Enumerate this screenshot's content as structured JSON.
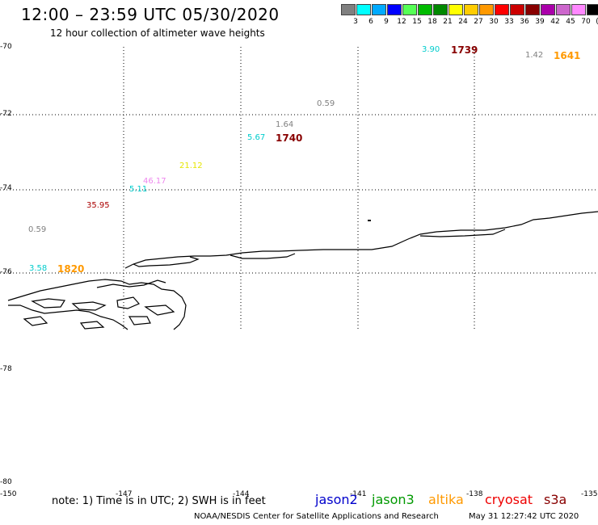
{
  "title": "12:00 – 23:59 UTC 05/30/2020",
  "subtitle": "12 hour collection of altimeter wave heights",
  "legend": {
    "colors": [
      "#808080",
      "#00ffff",
      "#00aaff",
      "#0000ff",
      "#55ff55",
      "#00bb00",
      "#008800",
      "#ffff00",
      "#ffcc00",
      "#ff9900",
      "#ff0000",
      "#cc0000",
      "#880000",
      "#aa00aa",
      "#cc66cc",
      "#ff88ff",
      "#000000"
    ],
    "labels": [
      "3",
      "6",
      "9",
      "12",
      "15",
      "18",
      "21",
      "24",
      "27",
      "30",
      "33",
      "36",
      "39",
      "42",
      "45",
      "70",
      "(ft)"
    ]
  },
  "map": {
    "y_ticks": [
      "-70",
      "-72",
      "-74",
      "-76",
      "-78",
      "-80"
    ],
    "x_ticks": [
      "-150",
      "-147",
      "-144",
      "-141",
      "-138",
      "-135"
    ],
    "wave_heights": [
      {
        "text": "3.90",
        "color": "#00cccc"
      },
      {
        "text": "1.42",
        "color": "#808080"
      },
      {
        "text": "0.59",
        "color": "#808080"
      },
      {
        "text": "1.64",
        "color": "#808080"
      },
      {
        "text": "5.67",
        "color": "#00cccc"
      },
      {
        "text": "21.12",
        "color": "#e6e600"
      },
      {
        "text": "46.17",
        "color": "#ee88ee"
      },
      {
        "text": "5.11",
        "color": "#00cccc"
      },
      {
        "text": "35.95",
        "color": "#aa0000"
      },
      {
        "text": "0.59",
        "color": "#808080"
      },
      {
        "text": "3.58",
        "color": "#00cccc"
      }
    ],
    "times": [
      {
        "text": "1739",
        "color": "#880000"
      },
      {
        "text": "1641",
        "color": "#ff9900"
      },
      {
        "text": "1740",
        "color": "#880000"
      },
      {
        "text": "1820",
        "color": "#ff9900"
      }
    ]
  },
  "note": "note: 1) Time is in UTC; 2) SWH is in feet",
  "satellites": [
    {
      "name": "jason2",
      "color": "#0000cc"
    },
    {
      "name": "jason3",
      "color": "#009900"
    },
    {
      "name": "altika",
      "color": "#ff9900"
    },
    {
      "name": "cryosat",
      "color": "#ee0000"
    },
    {
      "name": "s3a",
      "color": "#880000"
    }
  ],
  "credit": "NOAA/NESDIS Center for Satellite Applications and Research",
  "timestamp": "May 31 12:27:42 UTC 2020"
}
